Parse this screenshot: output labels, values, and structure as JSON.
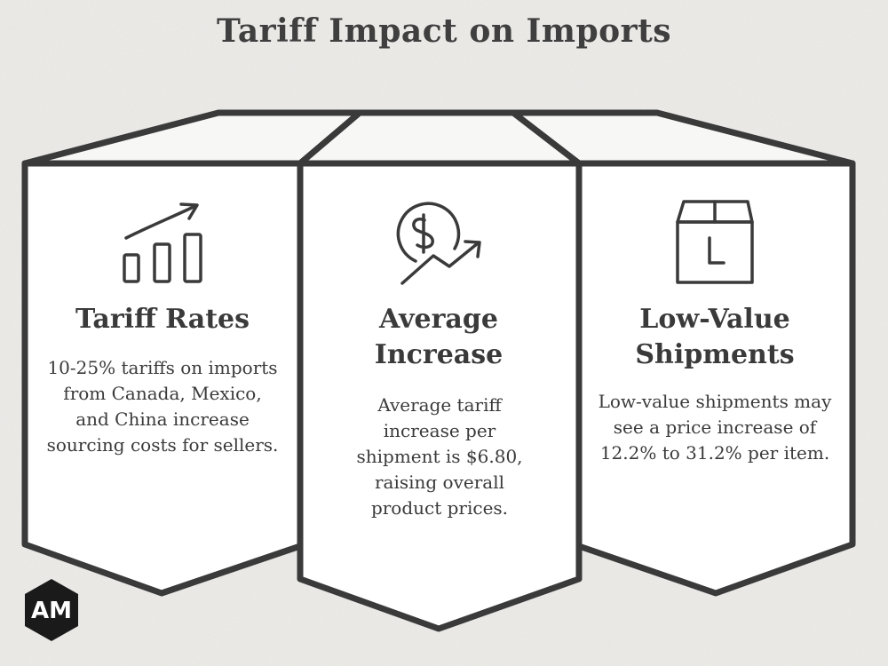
{
  "title": "Tariff Impact on Imports",
  "panels": [
    {
      "icon": "growth-chart-icon",
      "heading": "Tariff Rates",
      "body": "10-25% tariffs on imports from Canada, Mexico, and China increase sourcing costs for sellers."
    },
    {
      "icon": "dollar-trend-icon",
      "heading": "Average Increase",
      "body": "Average tariff increase per shipment is $6.80, raising overall product prices."
    },
    {
      "icon": "package-box-icon",
      "heading": "Low-Value Shipments",
      "body": "Low-value shipments may see a price increase of 12.2% to 31.2% per item."
    }
  ],
  "colors": {
    "background": "#ecebe8",
    "panel_fill": "#ffffff",
    "outline": "#3a3a3a",
    "text": "#3a3a3a"
  },
  "logo": {
    "icon": "am-logo-icon",
    "text": "AM"
  }
}
